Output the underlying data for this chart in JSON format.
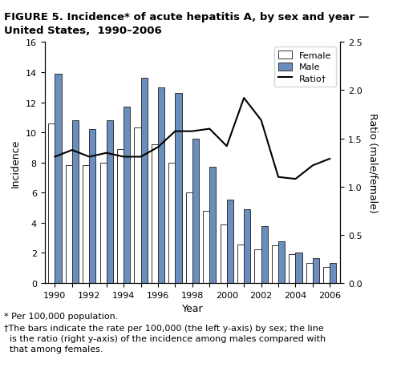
{
  "years": [
    1990,
    1991,
    1992,
    1993,
    1994,
    1995,
    1996,
    1997,
    1998,
    1999,
    2000,
    2001,
    2002,
    2003,
    2004,
    2005,
    2006
  ],
  "female": [
    10.6,
    7.8,
    7.8,
    8.0,
    8.9,
    10.35,
    9.2,
    8.0,
    6.0,
    4.8,
    3.9,
    2.55,
    2.25,
    2.5,
    1.9,
    1.35,
    1.05
  ],
  "male": [
    13.9,
    10.8,
    10.2,
    10.8,
    11.7,
    13.6,
    13.0,
    12.6,
    9.6,
    7.7,
    5.55,
    4.9,
    3.8,
    2.75,
    2.05,
    1.65,
    1.35
  ],
  "ratio": [
    1.31,
    1.38,
    1.31,
    1.35,
    1.31,
    1.31,
    1.41,
    1.575,
    1.575,
    1.6,
    1.42,
    1.92,
    1.69,
    1.1,
    1.08,
    1.22,
    1.29
  ],
  "female_color": "#ffffff",
  "male_color": "#6a8fbe",
  "bar_edge_color": "#333333",
  "line_color": "#000000",
  "ylim_left": [
    0,
    16
  ],
  "ylim_right": [
    0,
    2.5
  ],
  "yticks_left": [
    0,
    2,
    4,
    6,
    8,
    10,
    12,
    14,
    16
  ],
  "yticks_right": [
    0,
    0.5,
    1.0,
    1.5,
    2.0,
    2.5
  ],
  "ylabel_left": "Incidence",
  "ylabel_right": "Ratio (male/female)",
  "xlabel": "Year",
  "title_line1": "FIGURE 5. Incidence* of acute hepatitis A, by sex and year —",
  "title_line2": "United States,  1990–2006",
  "legend_labels": [
    "Female",
    "Male",
    "Ratio†"
  ],
  "footnote1": "* Per 100,000 population.",
  "footnote2": "†The bars indicate the rate per 100,000 (the left y-axis) by sex; the line",
  "footnote3": "  is the ratio (right y-axis) of the incidence among males compared with",
  "footnote4": "  that among females."
}
